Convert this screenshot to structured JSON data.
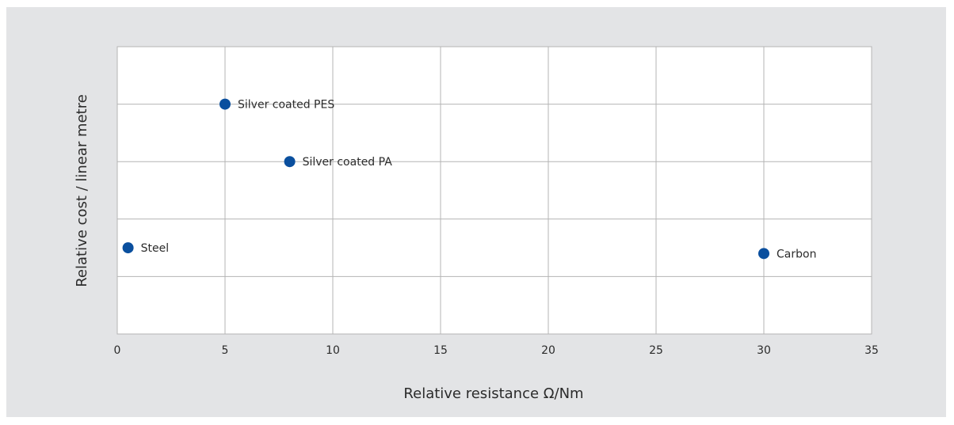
{
  "chart_data": {
    "type": "scatter",
    "title": "",
    "xlabel": "Relative resistance Ω/Nm",
    "ylabel": "Relative cost / linear metre",
    "xlim": [
      0,
      35
    ],
    "ylim": [
      0,
      5
    ],
    "xticks": [
      0,
      5,
      10,
      15,
      20,
      25,
      30,
      35
    ],
    "x_tick_labels_shown": true,
    "y_tick_labels_shown": false,
    "grid": true,
    "point_color": "#0a4f9e",
    "points": [
      {
        "label": "Silver coated PES",
        "x": 5,
        "y": 4.0
      },
      {
        "label": "Silver coated PA",
        "x": 8,
        "y": 3.0
      },
      {
        "label": "Steel",
        "x": 0.5,
        "y": 1.5
      },
      {
        "label": "Carbon",
        "x": 30,
        "y": 1.4
      }
    ]
  }
}
